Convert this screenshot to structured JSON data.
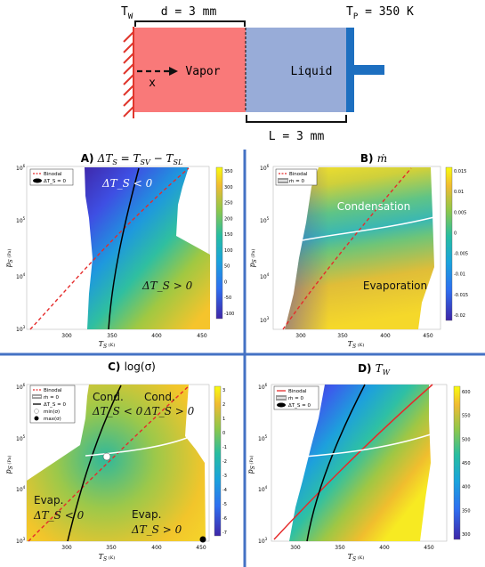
{
  "schematic": {
    "tw_label": "T",
    "tw_sub": "W",
    "tp_label": "T",
    "tp_sub": "P",
    "tp_value": " = 350 K",
    "d_label": "d = 3 mm",
    "l_label": "L = 3 mm",
    "vapor_label": "Vapor",
    "liquid_label": "Liquid",
    "x_label": "x",
    "colors": {
      "vapor": "#f97979",
      "liquid": "#98acd8",
      "wall_hatch": "#e0362c",
      "piston": "#1d6fc0",
      "divider": "#4472c4"
    }
  },
  "panels": [
    {
      "key": "A",
      "title_letter": "A) ",
      "title_math": "ΔT",
      "title_sub": "S",
      "title_rest": " = T",
      "title_sub2": "SV",
      "title_rest2": " − T",
      "title_sub3": "SL",
      "xlabel": "T",
      "xlabel_sub": "S",
      "xlabel_unit": " (K)",
      "ylabel": "p",
      "ylabel_sub": "S",
      "ylabel_unit": " (Pa)",
      "xticks": [
        "300",
        "350",
        "400",
        "450"
      ],
      "yticks": [
        "10",
        "10",
        "10",
        "10"
      ],
      "yexp": [
        "6",
        "5",
        "4",
        "3"
      ],
      "cbar_ticks": [
        "350",
        "300",
        "250",
        "200",
        "150",
        "100",
        "50",
        "0",
        "-50",
        "-100"
      ],
      "legend": [
        {
          "text": "Binodal",
          "style": "red-dashed"
        },
        {
          "text": "ΔT_S = 0",
          "style": "black-solid-oval"
        }
      ],
      "annotations": [
        "ΔT_S < 0",
        "ΔT_S > 0"
      ]
    },
    {
      "key": "B",
      "title_letter": "B) ",
      "title_math": "ṁ",
      "xlabel": "T",
      "xlabel_sub": "S",
      "xlabel_unit": " (K)",
      "ylabel": "p",
      "ylabel_sub": "S",
      "ylabel_unit": " (Pa)",
      "xticks": [
        "300",
        "350",
        "400",
        "450"
      ],
      "yticks": [
        "10",
        "10",
        "10",
        "10"
      ],
      "yexp": [
        "6",
        "5",
        "4",
        "3"
      ],
      "cbar_ticks": [
        "0.015",
        "0.01",
        "0.005",
        "0",
        "-0.005",
        "-0.01",
        "-0.015",
        "-0.02"
      ],
      "legend": [
        {
          "text": "Binodal",
          "style": "red-dashed"
        },
        {
          "text": "ṁ = 0",
          "style": "white-solid"
        }
      ],
      "annotations": [
        "Condensation",
        "Evaporation"
      ]
    },
    {
      "key": "C",
      "title_letter": "C) ",
      "title_math": "log(σ)",
      "xlabel": "T",
      "xlabel_sub": "S",
      "xlabel_unit": " (K)",
      "ylabel": "p",
      "ylabel_sub": "S",
      "ylabel_unit": " (Pa)",
      "xticks": [
        "300",
        "350",
        "400",
        "450"
      ],
      "yticks": [
        "10",
        "10",
        "10",
        "10"
      ],
      "yexp": [
        "6",
        "5",
        "4",
        "3"
      ],
      "cbar_ticks": [
        "3",
        "2",
        "1",
        "0",
        "-1",
        "-2",
        "-3",
        "-4",
        "-5",
        "-6",
        "-7"
      ],
      "legend": [
        {
          "text": "Binodal",
          "style": "red-dashed"
        },
        {
          "text": "ṁ = 0",
          "style": "white-solid"
        },
        {
          "text": "ΔT_S = 0",
          "style": "black-solid"
        },
        {
          "text": "min(σ)",
          "style": "white-dot"
        },
        {
          "text": "max(σ)",
          "style": "black-dot"
        }
      ],
      "annotations": [
        "Cond.",
        "ΔT_S < 0",
        "Cond.",
        "ΔT_S > 0",
        "Evap.",
        "ΔT_S < 0",
        "Evap.",
        "ΔT_S > 0"
      ]
    },
    {
      "key": "D",
      "title_letter": "D) ",
      "title_math": "T",
      "title_sub": "W",
      "xlabel": "T",
      "xlabel_sub": "S",
      "xlabel_unit": " (K)",
      "ylabel": "p",
      "ylabel_sub": "S",
      "ylabel_unit": " (Pa)",
      "xticks": [
        "300",
        "350",
        "400",
        "450"
      ],
      "yticks": [
        "10",
        "10",
        "10",
        "10"
      ],
      "yexp": [
        "6",
        "5",
        "4",
        "3"
      ],
      "cbar_ticks": [
        "600",
        "550",
        "500",
        "450",
        "400",
        "350",
        "300"
      ],
      "legend": [
        {
          "text": "Binodal",
          "style": "red-solid"
        },
        {
          "text": "ṁ = 0",
          "style": "white-solid"
        },
        {
          "text": "ΔT_S = 0",
          "style": "black-solid-oval"
        }
      ],
      "annotations": []
    }
  ],
  "chart_data": [
    {
      "type": "heatmap",
      "title": "A) ΔT_S = T_SV − T_SL",
      "xlabel": "T_S (K)",
      "ylabel": "p_S (Pa)",
      "xlim": [
        280,
        470
      ],
      "ylim": [
        1000,
        1000000
      ],
      "yscale": "log",
      "colorbar_range": [
        -120,
        360
      ]
    },
    {
      "type": "heatmap",
      "title": "B) ṁ",
      "xlabel": "T_S (K)",
      "ylabel": "p_S (Pa)",
      "xlim": [
        280,
        470
      ],
      "ylim": [
        1000,
        1000000
      ],
      "yscale": "log",
      "colorbar_range": [
        -0.022,
        0.016
      ]
    },
    {
      "type": "heatmap",
      "title": "C) log(σ)",
      "xlabel": "T_S (K)",
      "ylabel": "p_S (Pa)",
      "xlim": [
        280,
        470
      ],
      "ylim": [
        1000,
        1000000
      ],
      "yscale": "log",
      "colorbar_range": [
        -7.5,
        3.2
      ]
    },
    {
      "type": "heatmap",
      "title": "D) T_W",
      "xlabel": "T_S (K)",
      "ylabel": "p_S (Pa)",
      "xlim": [
        280,
        470
      ],
      "ylim": [
        1000,
        1000000
      ],
      "yscale": "log",
      "colorbar_range": [
        280,
        640
      ]
    }
  ]
}
